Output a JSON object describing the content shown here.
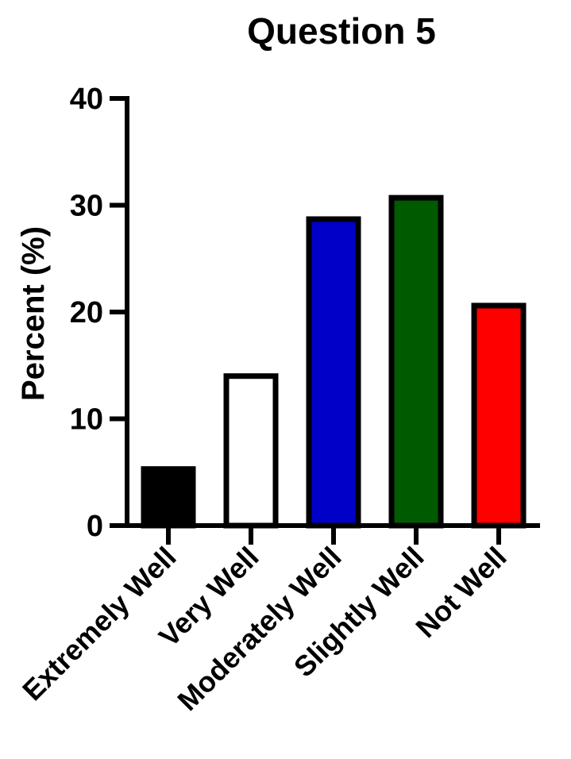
{
  "chart_data": {
    "type": "bar",
    "title": "Question 5",
    "xlabel": "",
    "ylabel": "Percent (%)",
    "ylim": [
      0,
      40
    ],
    "yticks": [
      0,
      10,
      20,
      30,
      40
    ],
    "categories": [
      "Extremely Well",
      "Very Well",
      "Moderately Well",
      "Slightly Well",
      "Not Well"
    ],
    "values": [
      5.3,
      14.0,
      28.7,
      30.7,
      20.6
    ],
    "colors": [
      "#000000",
      "#ffffff",
      "#0000c8",
      "#005a00",
      "#ff0000"
    ],
    "grid": false,
    "legend": "none"
  }
}
